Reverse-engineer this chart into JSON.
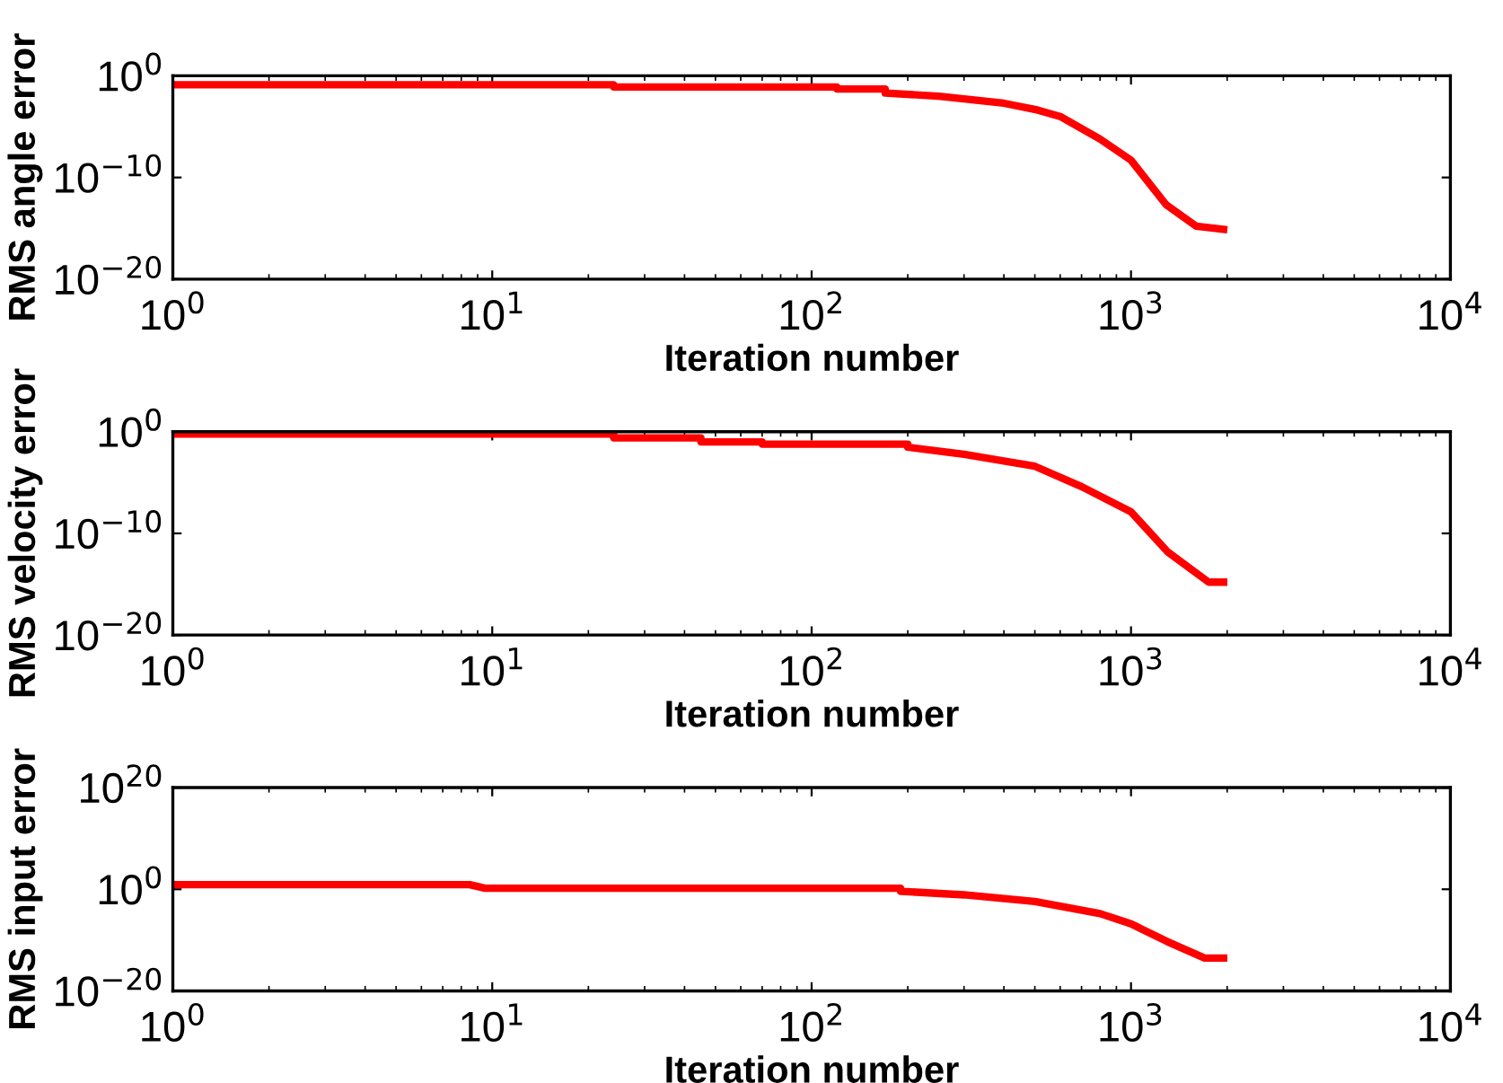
{
  "chart_data": [
    {
      "type": "line",
      "xlabel": "Iteration number",
      "ylabel": "RMS angle error",
      "log": "xy",
      "grid": false,
      "marker": "none",
      "line_style": "solid",
      "xlim": [
        1,
        10000
      ],
      "xticks": [
        {
          "value": 1,
          "label": "10$^{0}$"
        },
        {
          "value": 10,
          "label": "10$^{1}$"
        },
        {
          "value": 100,
          "label": "10$^{2}$"
        },
        {
          "value": 1000,
          "label": "10$^{3}$"
        },
        {
          "value": 10000,
          "label": "10$^{4}$"
        }
      ],
      "ylim": [
        1e-20,
        1
      ],
      "yticks": [
        {
          "value": 1e-20,
          "label": "10$^{−20}$"
        },
        {
          "value": 1e-10,
          "label": "10$^{−10}$"
        },
        {
          "value": 1,
          "label": "10$^{0}$"
        }
      ],
      "series": [
        {
          "color": "#ff0000",
          "x": [
            1,
            24,
            24,
            120,
            120,
            170,
            170,
            250,
            400,
            500,
            600,
            800,
            1000,
            1290,
            1600,
            1950
          ],
          "values": [
            0.13,
            0.13,
            0.08,
            0.08,
            0.05,
            0.05,
            0.02,
            0.01,
            0.002,
            0.0005,
            0.0001,
            6e-07,
            5e-09,
            2e-13,
            1.6e-15,
            8e-16
          ]
        }
      ]
    },
    {
      "type": "line",
      "xlabel": "Iteration number",
      "ylabel": "RMS velocity error",
      "log": "xy",
      "grid": false,
      "marker": "none",
      "line_style": "solid",
      "xlim": [
        1,
        10000
      ],
      "xticks": [
        {
          "value": 1,
          "label": "10$^{0}$"
        },
        {
          "value": 10,
          "label": "10$^{1}$"
        },
        {
          "value": 100,
          "label": "10$^{2}$"
        },
        {
          "value": 1000,
          "label": "10$^{3}$"
        },
        {
          "value": 10000,
          "label": "10$^{4}$"
        }
      ],
      "ylim": [
        1e-20,
        1
      ],
      "yticks": [
        {
          "value": 1e-20,
          "label": "10$^{−20}$"
        },
        {
          "value": 1e-10,
          "label": "10$^{−10}$"
        },
        {
          "value": 1,
          "label": "10$^{0}$"
        }
      ],
      "series": [
        {
          "color": "#ff0000",
          "x": [
            1,
            24,
            24,
            45,
            45,
            70,
            70,
            200,
            200,
            300,
            500,
            700,
            1000,
            1300,
            1750,
            1950
          ],
          "values": [
            0.6,
            0.6,
            0.25,
            0.25,
            0.1,
            0.1,
            0.06,
            0.06,
            0.03,
            0.006,
            0.0004,
            4e-06,
            1.3e-08,
            1.6e-12,
            1.6e-15,
            1.6e-15
          ]
        }
      ]
    },
    {
      "type": "line",
      "xlabel": "Iteration number",
      "ylabel": "RMS input error",
      "log": "xy",
      "grid": false,
      "marker": "none",
      "line_style": "solid",
      "xlim": [
        1,
        10000
      ],
      "xticks": [
        {
          "value": 1,
          "label": "10$^{0}$"
        },
        {
          "value": 10,
          "label": "10$^{1}$"
        },
        {
          "value": 100,
          "label": "10$^{2}$"
        },
        {
          "value": 1000,
          "label": "10$^{3}$"
        },
        {
          "value": 10000,
          "label": "10$^{4}$"
        }
      ],
      "ylim": [
        1e-20,
        1e+20
      ],
      "yticks": [
        {
          "value": 1e-20,
          "label": "10$^{−20}$"
        },
        {
          "value": 1,
          "label": "10$^{0}$"
        },
        {
          "value": 1e+20,
          "label": "10$^{20}$"
        }
      ],
      "series": [
        {
          "color": "#ff0000",
          "x": [
            1,
            8.5,
            9.5,
            190,
            190,
            300,
            500,
            800,
            1000,
            1300,
            1700,
            1950
          ],
          "values": [
            8,
            8,
            1.6,
            1.6,
            0.4,
            0.08,
            0.004,
            1.6e-05,
            1.6e-07,
            5e-11,
            3e-14,
            3e-14
          ]
        }
      ]
    }
  ]
}
